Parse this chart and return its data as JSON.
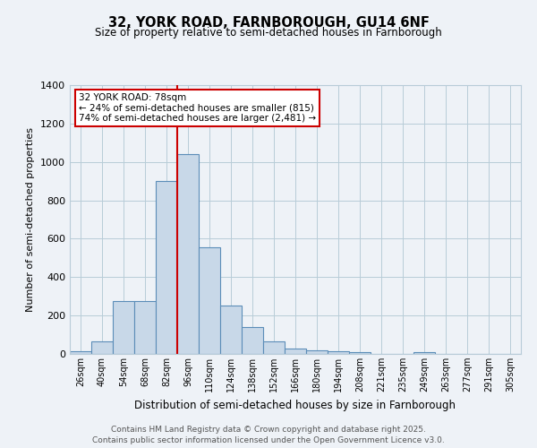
{
  "title1": "32, YORK ROAD, FARNBOROUGH, GU14 6NF",
  "title2": "Size of property relative to semi-detached houses in Farnborough",
  "xlabel": "Distribution of semi-detached houses by size in Farnborough",
  "ylabel": "Number of semi-detached properties",
  "categories": [
    "26sqm",
    "40sqm",
    "54sqm",
    "68sqm",
    "82sqm",
    "96sqm",
    "110sqm",
    "124sqm",
    "138sqm",
    "152sqm",
    "166sqm",
    "180sqm",
    "194sqm",
    "208sqm",
    "221sqm",
    "235sqm",
    "249sqm",
    "263sqm",
    "277sqm",
    "291sqm",
    "305sqm"
  ],
  "values": [
    15,
    65,
    275,
    275,
    900,
    1040,
    555,
    250,
    140,
    65,
    30,
    20,
    15,
    10,
    0,
    0,
    8,
    0,
    0,
    0,
    0
  ],
  "bar_color": "#c8d8e8",
  "bar_edge_color": "#5b8db8",
  "vline_color": "#cc0000",
  "annotation_text": "32 YORK ROAD: 78sqm\n← 24% of semi-detached houses are smaller (815)\n74% of semi-detached houses are larger (2,481) →",
  "annotation_box_color": "#ffffff",
  "annotation_box_edge": "#cc0000",
  "ylim": [
    0,
    1400
  ],
  "yticks": [
    0,
    200,
    400,
    600,
    800,
    1000,
    1200,
    1400
  ],
  "footer1": "Contains HM Land Registry data © Crown copyright and database right 2025.",
  "footer2": "Contains public sector information licensed under the Open Government Licence v3.0.",
  "bg_color": "#eef2f7",
  "plot_bg_color": "#eef2f7",
  "grid_color": "#b8ccd8"
}
